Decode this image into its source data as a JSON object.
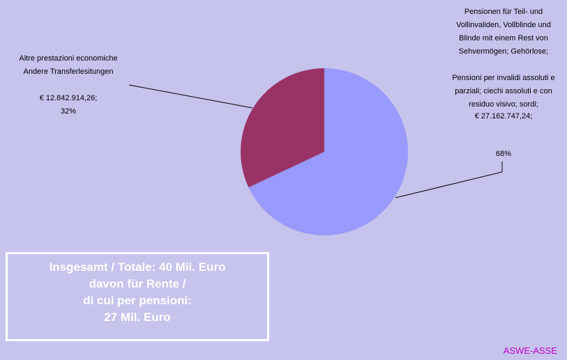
{
  "chart_data": {
    "type": "pie",
    "categories": [
      "Pensionen für Teil- und\nVollinvaliden, Vollblinde und\nBlinde mit einem Rest von\nSehvermögen; Gehörlose;\n\nPensioni per invalidi assoluti e\nparziali; ciechi assoluti e con\nresiduo visivo; sordi;",
      "Altre prestazioni economiche\nAndere Transferlesitungen"
    ],
    "values": [
      68,
      32
    ],
    "value_labels": [
      "68%",
      "32%"
    ],
    "amounts": [
      27162747.24,
      12842914.26
    ],
    "amount_labels": [
      "€ 27.162.747,24;",
      "€ 12.842.914,26;"
    ],
    "colors": [
      "#9999ff",
      "#993366"
    ],
    "annotation": "Insgesamt / Totale:  40 Mil. Euro\ndavon für Rente /\ndi cui per pensioni:\n27 Mil. Euro",
    "footer": "ASWE-ASSE"
  }
}
